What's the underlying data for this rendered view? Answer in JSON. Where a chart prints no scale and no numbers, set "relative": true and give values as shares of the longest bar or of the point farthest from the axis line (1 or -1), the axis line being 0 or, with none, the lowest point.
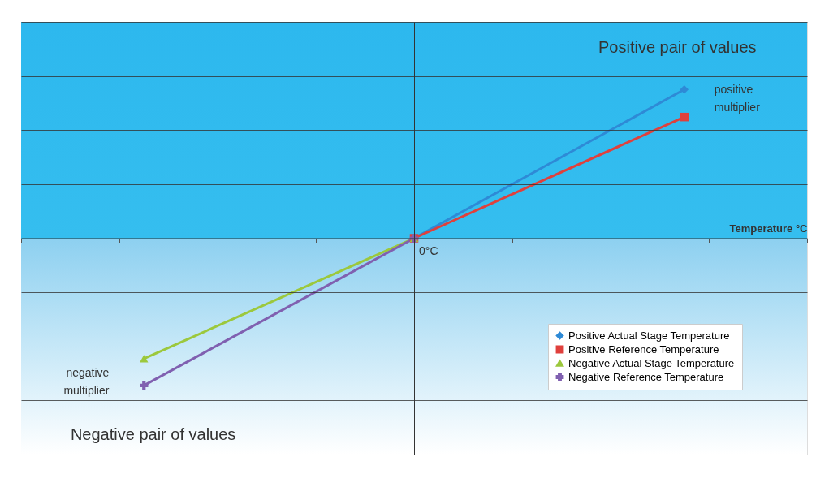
{
  "chart_data": {
    "type": "line",
    "relative": true,
    "xlabel": "Temperature °C",
    "categories": [
      null,
      null,
      null
    ],
    "series": [
      {
        "name": "Positive Actual Stage Temperature",
        "color": "#2e8ad6",
        "marker": "diamond",
        "values": [
          null,
          0,
          1
        ]
      },
      {
        "name": "Positive Reference Temperature",
        "color": "#e0403c",
        "marker": "square",
        "values": [
          null,
          0,
          0.815
        ]
      },
      {
        "name": "Negative Actual Stage Temperature",
        "color": "#9cc83c",
        "marker": "triangle",
        "values": [
          -0.81,
          0,
          null
        ]
      },
      {
        "name": "Negative Reference Temperature",
        "color": "#8060b0",
        "marker": "cross",
        "values": [
          -0.99,
          0,
          null
        ]
      }
    ],
    "annotations": [
      "Positive pair of values",
      "positive multiplier",
      "Negative pair of values",
      "negative multiplier",
      "0°C"
    ],
    "grid": "y",
    "legend": "bottom right"
  }
}
